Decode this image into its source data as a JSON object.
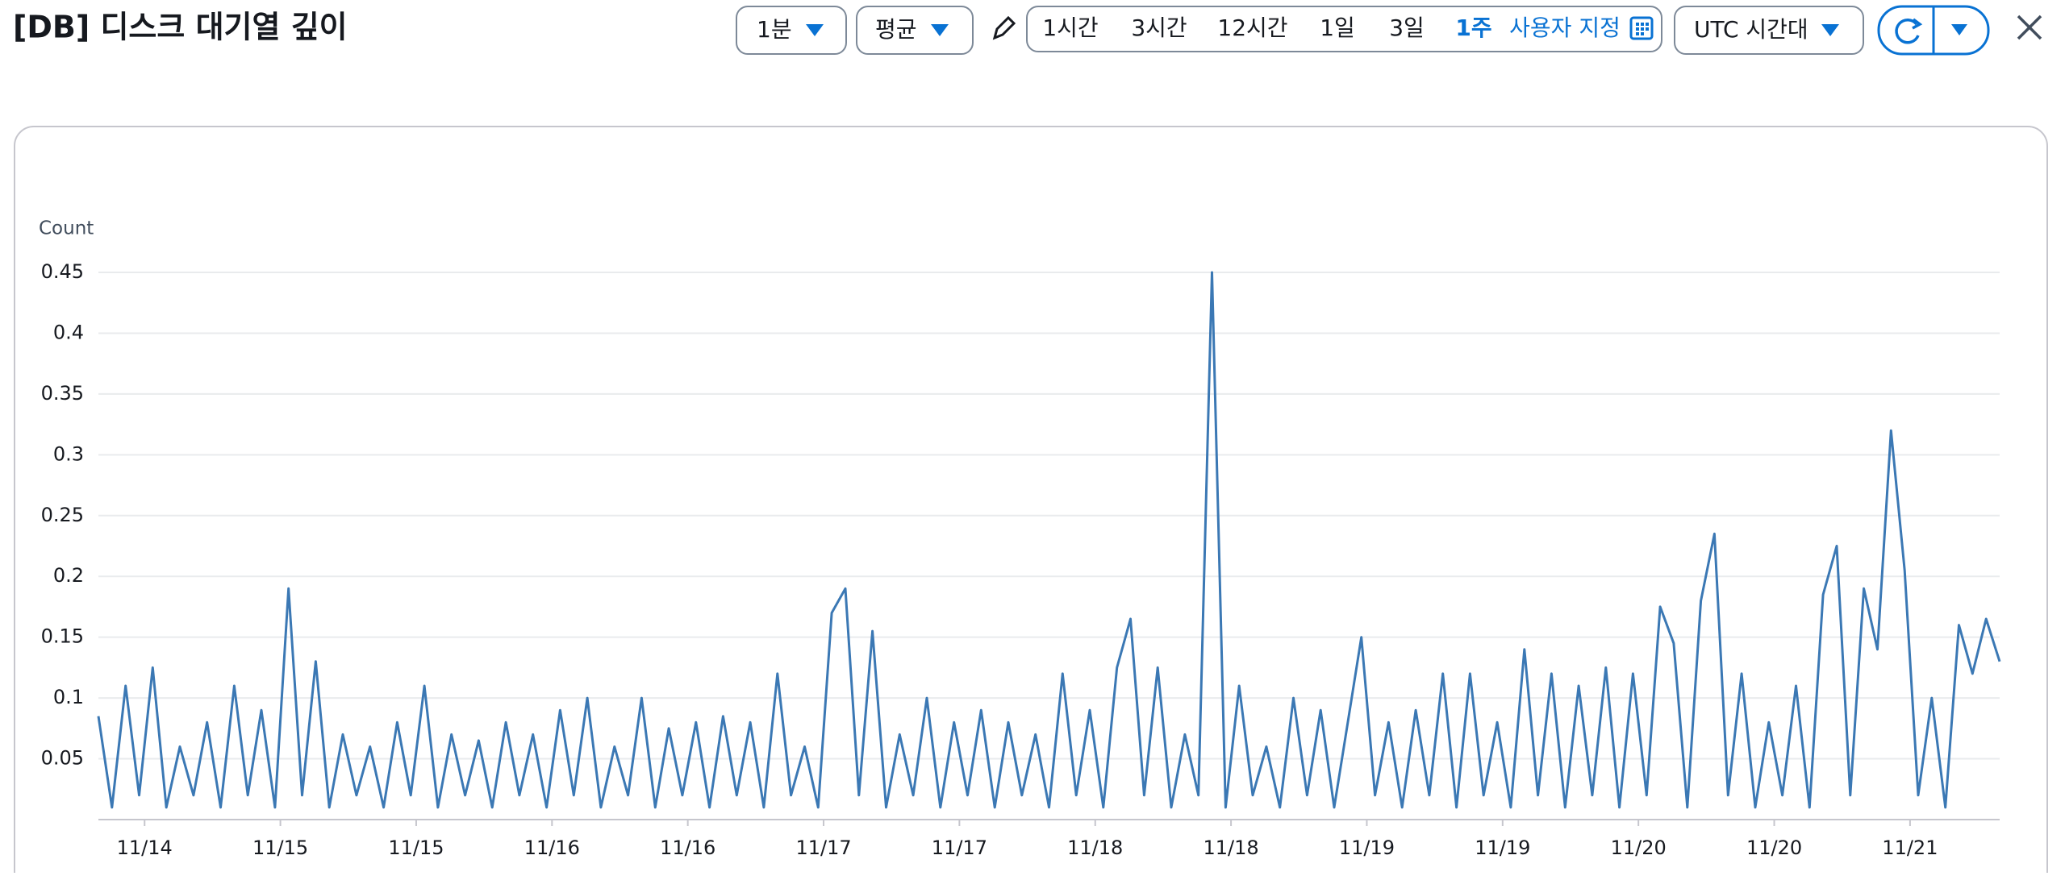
{
  "header": {
    "title": "[DB] 디스크 대기열 깊이"
  },
  "toolbar": {
    "period": "1분",
    "statistic": "평균",
    "ranges": [
      "1시간",
      "3시간",
      "12시간",
      "1일",
      "3일",
      "1주"
    ],
    "selected_range": 5,
    "custom_range": "사용자 지정",
    "timezone": "UTC 시간대"
  },
  "chart_data": {
    "type": "line",
    "y_label": "Count",
    "color": "#3b78b4",
    "grid": true,
    "ylim": [
      0,
      0.45
    ],
    "yticks": [
      0.05,
      0.1,
      0.15,
      0.2,
      0.25,
      0.3,
      0.35,
      0.4,
      0.45
    ],
    "xlim": [
      0,
      140
    ],
    "xticks": [
      {
        "value": 3.4,
        "label": "11/14"
      },
      {
        "value": 13.4,
        "label": "11/15"
      },
      {
        "value": 23.4,
        "label": "11/15"
      },
      {
        "value": 33.4,
        "label": "11/16"
      },
      {
        "value": 43.4,
        "label": "11/16"
      },
      {
        "value": 53.4,
        "label": "11/17"
      },
      {
        "value": 63.4,
        "label": "11/17"
      },
      {
        "value": 73.4,
        "label": "11/18"
      },
      {
        "value": 83.4,
        "label": "11/18"
      },
      {
        "value": 93.4,
        "label": "11/19"
      },
      {
        "value": 103.4,
        "label": "11/19"
      },
      {
        "value": 113.4,
        "label": "11/20"
      },
      {
        "value": 123.4,
        "label": "11/20"
      },
      {
        "value": 133.4,
        "label": "11/21"
      }
    ],
    "values": [
      0.085,
      0.01,
      0.11,
      0.02,
      0.125,
      0.01,
      0.06,
      0.02,
      0.08,
      0.01,
      0.11,
      0.02,
      0.09,
      0.01,
      0.19,
      0.02,
      0.13,
      0.01,
      0.07,
      0.02,
      0.06,
      0.01,
      0.08,
      0.02,
      0.11,
      0.01,
      0.07,
      0.02,
      0.065,
      0.01,
      0.08,
      0.02,
      0.07,
      0.01,
      0.09,
      0.02,
      0.1,
      0.01,
      0.06,
      0.02,
      0.1,
      0.01,
      0.075,
      0.02,
      0.08,
      0.01,
      0.085,
      0.02,
      0.08,
      0.01,
      0.12,
      0.02,
      0.06,
      0.01,
      0.17,
      0.19,
      0.02,
      0.155,
      0.01,
      0.07,
      0.02,
      0.1,
      0.01,
      0.08,
      0.02,
      0.09,
      0.01,
      0.08,
      0.02,
      0.07,
      0.01,
      0.12,
      0.02,
      0.09,
      0.01,
      0.125,
      0.165,
      0.02,
      0.125,
      0.01,
      0.07,
      0.02,
      0.45,
      0.01,
      0.11,
      0.02,
      0.06,
      0.01,
      0.1,
      0.02,
      0.09,
      0.01,
      0.08,
      0.15,
      0.02,
      0.08,
      0.01,
      0.09,
      0.02,
      0.12,
      0.01,
      0.12,
      0.02,
      0.08,
      0.01,
      0.14,
      0.02,
      0.12,
      0.01,
      0.11,
      0.02,
      0.125,
      0.01,
      0.12,
      0.02,
      0.175,
      0.145,
      0.01,
      0.18,
      0.235,
      0.02,
      0.12,
      0.01,
      0.08,
      0.02,
      0.11,
      0.01,
      0.185,
      0.225,
      0.02,
      0.19,
      0.14,
      0.32,
      0.205,
      0.02,
      0.1,
      0.01,
      0.16,
      0.12,
      0.165,
      0.13
    ]
  }
}
